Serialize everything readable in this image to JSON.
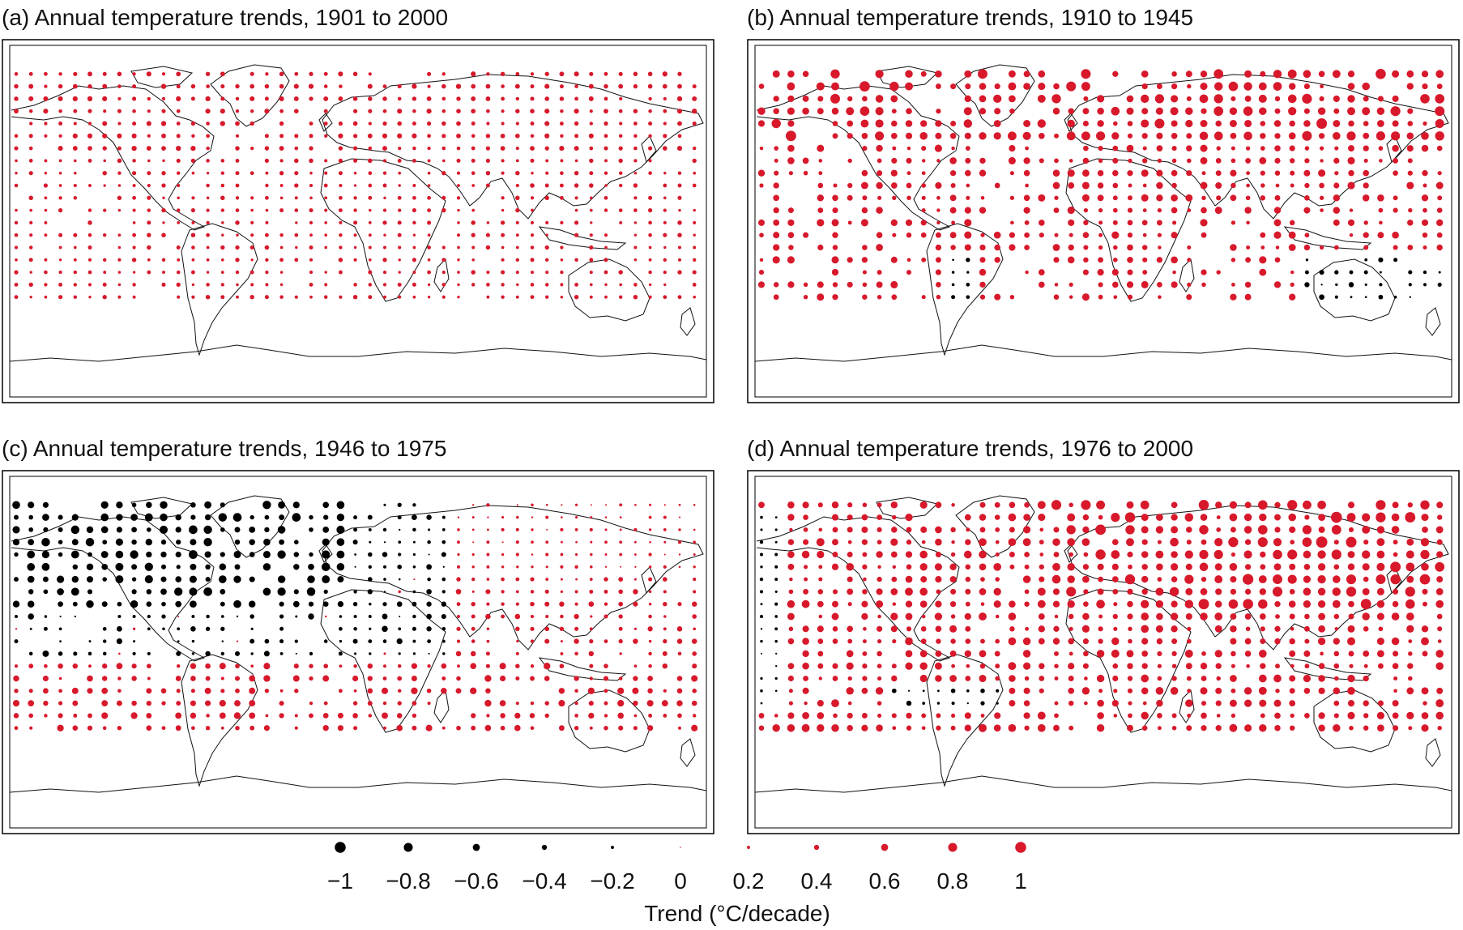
{
  "panels": [
    {
      "id": "a",
      "title": "(a) Annual temperature trends, 1901 to 2000"
    },
    {
      "id": "b",
      "title": "(b) Annual temperature trends, 1910 to 1945"
    },
    {
      "id": "c",
      "title": "(c) Annual temperature trends, 1946 to 1975"
    },
    {
      "id": "d",
      "title": "(d) Annual temperature trends, 1976 to 2000"
    }
  ],
  "legend": {
    "title": "Trend (°C/decade)",
    "values": [
      "−1",
      "−0.8",
      "−0.6",
      "−0.4",
      "−0.2",
      "0",
      "0.2",
      "0.4",
      "0.6",
      "0.8",
      "1"
    ],
    "numeric": [
      -1,
      -0.8,
      -0.6,
      -0.4,
      -0.2,
      0,
      0.2,
      0.4,
      0.6,
      0.8,
      1
    ]
  },
  "colors": {
    "positive": "#d7192b",
    "negative": "#000000",
    "coast": "#111111"
  }
}
